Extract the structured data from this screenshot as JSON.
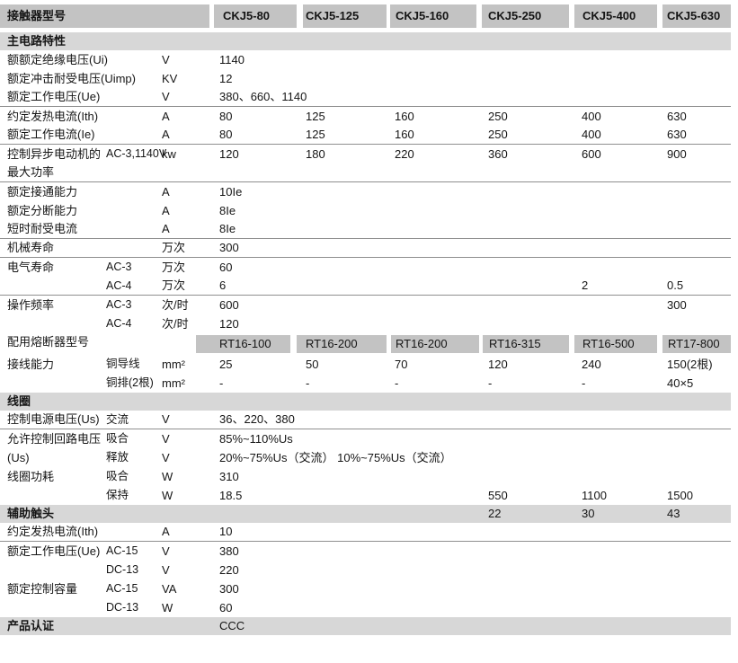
{
  "colors": {
    "header_box": "#c3c3c3",
    "section_band": "#d7d7d7",
    "divider_line": "#8f8f8f",
    "text": "#151515"
  },
  "header": {
    "label": "接触器型号",
    "models": [
      "CKJ5-80",
      "CKJ5-125",
      "CKJ5-160",
      "CKJ5-250",
      "CKJ5-400",
      "CKJ5-630"
    ]
  },
  "rows": [
    {
      "type": "band",
      "label": "主电路特性",
      "sub": "",
      "unit": "",
      "values": [
        "",
        "",
        "",
        "",
        "",
        ""
      ]
    },
    {
      "type": "data",
      "label": "额额定绝缘电压(Ui)",
      "sub": "",
      "unit": "V",
      "values": [
        "1140",
        "",
        "",
        "",
        "",
        ""
      ]
    },
    {
      "type": "data",
      "label": "额定冲击耐受电压(Uimp)",
      "sub": "",
      "unit": "KV",
      "values": [
        "12",
        "",
        "",
        "",
        "",
        ""
      ]
    },
    {
      "type": "data",
      "label": "额定工作电压(Ue)",
      "sub": "",
      "unit": "V",
      "values": [
        "380、660、1140",
        "",
        "",
        "",
        "",
        ""
      ],
      "bb": true
    },
    {
      "type": "data",
      "label": "约定发热电流(Ith)",
      "sub": "",
      "unit": "A",
      "values": [
        "80",
        "125",
        "160",
        "250",
        "400",
        "630"
      ]
    },
    {
      "type": "data",
      "label": "额定工作电流(Ie)",
      "sub": "",
      "unit": "A",
      "values": [
        "80",
        "125",
        "160",
        "250",
        "400",
        "630"
      ],
      "bb": true
    },
    {
      "type": "data",
      "label": "控制异步电动机的",
      "sub": "AC-3,1140V",
      "unit": "kw",
      "values": [
        "120",
        "180",
        "220",
        "360",
        "600",
        "900"
      ]
    },
    {
      "type": "data",
      "label": "最大功率",
      "sub": "",
      "unit": "",
      "values": [
        "",
        "",
        "",
        "",
        "",
        ""
      ],
      "bb": true
    },
    {
      "type": "data",
      "label": "额定接通能力",
      "sub": "",
      "unit": "A",
      "values": [
        "10Ie",
        "",
        "",
        "",
        "",
        ""
      ]
    },
    {
      "type": "data",
      "label": "额定分断能力",
      "sub": "",
      "unit": "A",
      "values": [
        "8Ie",
        "",
        "",
        "",
        "",
        ""
      ]
    },
    {
      "type": "data",
      "label": "短时耐受电流",
      "sub": "",
      "unit": "A",
      "values": [
        "8Ie",
        "",
        "",
        "",
        "",
        ""
      ],
      "bb": true
    },
    {
      "type": "data",
      "label": "机械寿命",
      "sub": "",
      "unit": "万次",
      "values": [
        "300",
        "",
        "",
        "",
        "",
        ""
      ],
      "bb": true
    },
    {
      "type": "data",
      "label": "电气寿命",
      "sub": "AC-3",
      "unit": "万次",
      "values": [
        "60",
        "",
        "",
        "",
        "",
        ""
      ]
    },
    {
      "type": "data",
      "label": "",
      "sub": "AC-4",
      "unit": "万次",
      "values": [
        "6",
        "",
        "",
        "",
        "2",
        "0.5"
      ],
      "bb": true
    },
    {
      "type": "data",
      "label": "操作频率",
      "sub": "AC-3",
      "unit": "次/时",
      "values": [
        "600",
        "",
        "",
        "",
        "",
        "300"
      ]
    },
    {
      "type": "data",
      "label": "",
      "sub": "AC-4",
      "unit": "次/时",
      "values": [
        "120",
        "",
        "",
        "",
        "",
        ""
      ]
    },
    {
      "type": "fuse",
      "label": "配用熔断器型号",
      "sub": "",
      "unit": "",
      "values": [
        "RT16-100",
        "RT16-200",
        "RT16-200",
        "RT16-315",
        "RT16-500",
        "RT17-800"
      ]
    },
    {
      "type": "data",
      "label": "接线能力",
      "sub": "铜导线",
      "unit": "mm²",
      "values": [
        "25",
        "50",
        "70",
        "120",
        "240",
        "150(2根)"
      ]
    },
    {
      "type": "data",
      "label": "",
      "sub": "铜排(2根)",
      "unit": "mm²",
      "values": [
        "-",
        "-",
        "-",
        "-",
        "-",
        "40×5"
      ]
    },
    {
      "type": "band",
      "label": "线圈",
      "sub": "",
      "unit": "",
      "values": [
        "",
        "",
        "",
        "",
        "",
        ""
      ]
    },
    {
      "type": "data",
      "label": "控制电源电压(Us)",
      "sub": "交流",
      "unit": "V",
      "values": [
        "36、220、380",
        "",
        "",
        "",
        "",
        ""
      ],
      "bb": true
    },
    {
      "type": "data",
      "label": "允许控制回路电压",
      "sub": "吸合",
      "unit": "V",
      "values": [
        "85%~110%Us",
        "",
        "",
        "",
        "",
        ""
      ]
    },
    {
      "type": "data",
      "label": "(Us)",
      "sub": "释放",
      "unit": "V",
      "values": [
        "20%~75%Us（交流）   10%~75%Us（交流）",
        "",
        "",
        "",
        "",
        ""
      ]
    },
    {
      "type": "data",
      "label": "线圈功耗",
      "sub": "吸合",
      "unit": "W",
      "values": [
        "310",
        "",
        "",
        "",
        "",
        ""
      ]
    },
    {
      "type": "data",
      "label": "",
      "sub": "保持",
      "unit": "W",
      "values": [
        "18.5",
        "",
        "",
        "550",
        "1100",
        "1500"
      ]
    },
    {
      "type": "band",
      "label": "辅助触头",
      "sub": "",
      "unit": "",
      "values": [
        "",
        "",
        "",
        "22",
        "30",
        "43"
      ]
    },
    {
      "type": "data",
      "label": "约定发热电流(Ith)",
      "sub": "",
      "unit": "A",
      "values": [
        "10",
        "",
        "",
        "",
        "",
        ""
      ],
      "bb": true
    },
    {
      "type": "data",
      "label": "额定工作电压(Ue)",
      "sub": "AC-15",
      "unit": "V",
      "values": [
        "380",
        "",
        "",
        "",
        "",
        ""
      ]
    },
    {
      "type": "data",
      "label": "",
      "sub": "DC-13",
      "unit": "V",
      "values": [
        "220",
        "",
        "",
        "",
        "",
        ""
      ]
    },
    {
      "type": "data",
      "label": "额定控制容量",
      "sub": "AC-15",
      "unit": "VA",
      "values": [
        "300",
        "",
        "",
        "",
        "",
        ""
      ]
    },
    {
      "type": "data",
      "label": "",
      "sub": "DC-13",
      "unit": "W",
      "values": [
        "60",
        "",
        "",
        "",
        "",
        ""
      ]
    },
    {
      "type": "band",
      "label": "产品认证",
      "sub": "",
      "unit": "",
      "values": [
        "CCC",
        "",
        "",
        "",
        "",
        ""
      ]
    }
  ]
}
